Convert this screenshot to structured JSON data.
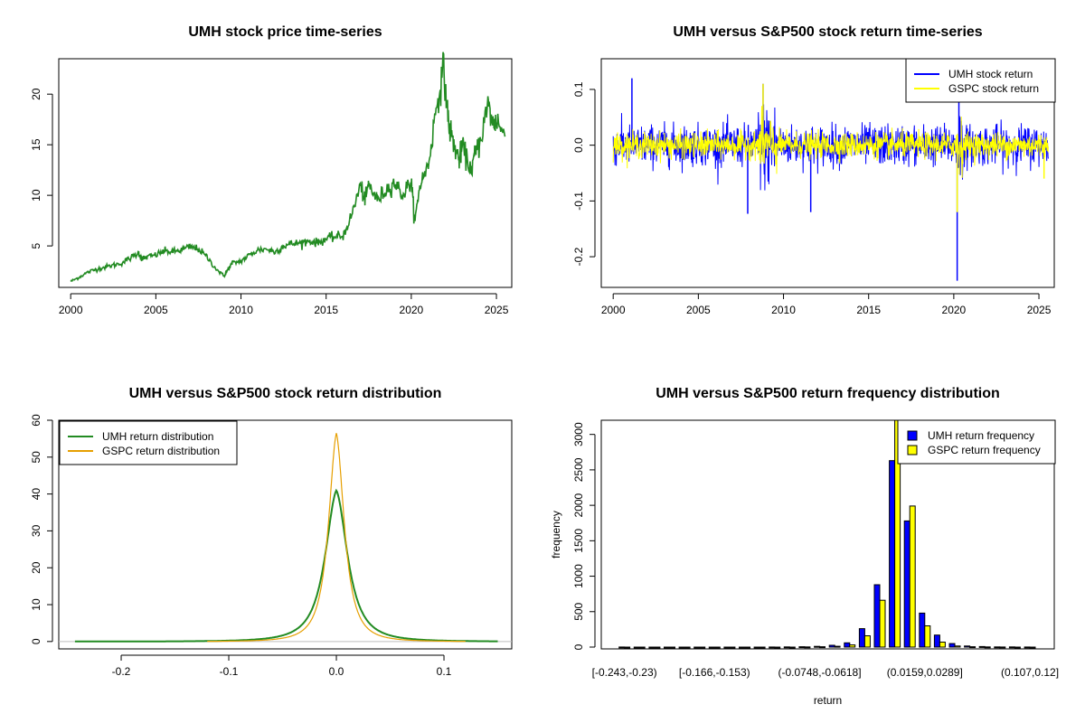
{
  "chart_data": [
    {
      "type": "line",
      "title": "UMH stock price time-series",
      "xlabel": "",
      "ylabel": "",
      "xlim": [
        1999.3,
        2025.9
      ],
      "ylim": [
        0.9,
        23.5
      ],
      "x_ticks": [
        "2000",
        "2005",
        "2010",
        "2015",
        "2020",
        "2025"
      ],
      "y_ticks": [
        "5",
        "10",
        "15",
        "20"
      ],
      "colors": {
        "series": "#228B22"
      },
      "series": [
        {
          "x": [
            2000.0,
            2000.5,
            2001.0,
            2001.5,
            2002.0,
            2002.5,
            2003.0,
            2003.5,
            2004.0,
            2004.2,
            2004.5,
            2005.0,
            2005.5,
            2006.0,
            2006.5,
            2007.0,
            2007.5,
            2008.0,
            2008.5,
            2009.0,
            2009.2,
            2009.5,
            2010.0,
            2010.5,
            2011.0,
            2011.5,
            2012.0,
            2012.5,
            2013.0,
            2013.5,
            2014.0,
            2014.5,
            2015.0,
            2015.5,
            2016.0,
            2016.5,
            2017.0,
            2017.3,
            2017.5,
            2018.0,
            2018.5,
            2019.0,
            2019.5,
            2020.0,
            2020.2,
            2020.5,
            2021.0,
            2021.5,
            2021.9,
            2022.2,
            2022.5,
            2022.8,
            2023.0,
            2023.5,
            2023.8,
            2024.0,
            2024.5,
            2024.8,
            2025.0,
            2025.5
          ],
          "y": [
            1.5,
            1.9,
            2.4,
            2.7,
            2.9,
            3.1,
            3.3,
            3.8,
            4.3,
            3.7,
            3.9,
            4.1,
            4.5,
            4.4,
            4.6,
            4.9,
            4.7,
            3.9,
            2.8,
            2.0,
            2.6,
            3.3,
            3.5,
            4.1,
            4.6,
            4.7,
            4.4,
            5.0,
            5.2,
            5.3,
            5.5,
            5.3,
            5.7,
            5.9,
            6.0,
            8.0,
            11.0,
            9.5,
            11.2,
            9.5,
            10.5,
            11.3,
            10.0,
            11.5,
            7.3,
            11.0,
            13.0,
            19.0,
            22.5,
            17.0,
            15.0,
            13.5,
            14.8,
            12.5,
            14.3,
            15.0,
            19.0,
            17.0,
            17.5,
            15.8
          ]
        }
      ]
    },
    {
      "type": "line",
      "title": "UMH versus S&P500 stock return time-series",
      "xlabel": "",
      "ylabel": "",
      "xlim": [
        1999.3,
        2025.9
      ],
      "ylim": [
        -0.255,
        0.155
      ],
      "x_ticks": [
        "2000",
        "2005",
        "2010",
        "2015",
        "2020",
        "2025"
      ],
      "y_ticks": [
        "-0.2",
        "-0.1",
        "0.0",
        "0.1"
      ],
      "legend_position": "top-right",
      "series": [
        {
          "name": "UMH stock return",
          "color": "#0000FF",
          "envelope": 0.032
        },
        {
          "name": "GSPC stock return",
          "color": "#FFFF00",
          "envelope": 0.02
        }
      ],
      "spikes": [
        {
          "series": "UMH stock return",
          "x": 2001.1,
          "y": 0.12
        },
        {
          "series": "UMH stock return",
          "x": 2007.9,
          "y": -0.123
        },
        {
          "series": "UMH stock return",
          "x": 2008.8,
          "y": 0.11
        },
        {
          "series": "UMH stock return",
          "x": 2011.6,
          "y": -0.12
        },
        {
          "series": "UMH stock return",
          "x": 2020.2,
          "y": -0.243
        },
        {
          "series": "UMH stock return",
          "x": 2020.3,
          "y": 0.12
        },
        {
          "series": "GSPC stock return",
          "x": 2008.8,
          "y": 0.11
        },
        {
          "series": "GSPC stock return",
          "x": 2020.2,
          "y": -0.12
        },
        {
          "series": "GSPC stock return",
          "x": 2025.3,
          "y": -0.06
        }
      ]
    },
    {
      "type": "line",
      "title": "UMH versus S&P500 stock return distribution",
      "xlabel": "",
      "ylabel": "",
      "xlim": [
        -0.258,
        0.163
      ],
      "ylim": [
        -2.0,
        60
      ],
      "x_ticks": [
        "-0.2",
        "-0.1",
        "0.0",
        "0.1"
      ],
      "y_ticks": [
        "0",
        "10",
        "20",
        "30",
        "40",
        "50",
        "60"
      ],
      "legend_position": "top-left",
      "series": [
        {
          "name": "UMH return distribution",
          "color": "#228B22",
          "peak": 41,
          "sd": 0.0135,
          "range": [
            -0.243,
            0.15
          ]
        },
        {
          "name": "GSPC return distribution",
          "color": "#E69F00",
          "peak": 56.5,
          "sd": 0.0095,
          "range": [
            -0.12,
            0.12
          ]
        }
      ]
    },
    {
      "type": "bar",
      "title": "UMH versus S&P500 return frequency distribution",
      "xlabel": "return",
      "ylabel": "frequency",
      "ylim": [
        0,
        3200
      ],
      "y_ticks": [
        "0",
        "500",
        "1000",
        "1500",
        "2000",
        "2500",
        "3000"
      ],
      "x_tick_labels": [
        "[-0.243,-0.23)",
        "[-0.166,-0.153)",
        "(-0.0748,-0.0618]",
        "(0.0159,0.0289]",
        "(0.107,0.12]"
      ],
      "x_tick_bins": [
        0,
        6,
        13,
        20,
        27
      ],
      "legend_position": "top-right",
      "categories_count": 28,
      "series": [
        {
          "name": "UMH return frequency",
          "color": "#0000FF",
          "values": [
            1,
            0,
            0,
            0,
            0,
            0,
            0,
            0,
            0,
            0,
            1,
            2,
            5,
            10,
            25,
            60,
            260,
            880,
            2630,
            1780,
            480,
            170,
            50,
            15,
            8,
            3,
            2,
            1
          ]
        },
        {
          "name": "GSPC return frequency",
          "color": "#FFFF00",
          "values": [
            0,
            0,
            0,
            0,
            0,
            0,
            0,
            0,
            0,
            0,
            0,
            0,
            2,
            5,
            12,
            30,
            160,
            660,
            3200,
            1990,
            300,
            70,
            15,
            5,
            2,
            1,
            0,
            0
          ]
        }
      ]
    }
  ]
}
